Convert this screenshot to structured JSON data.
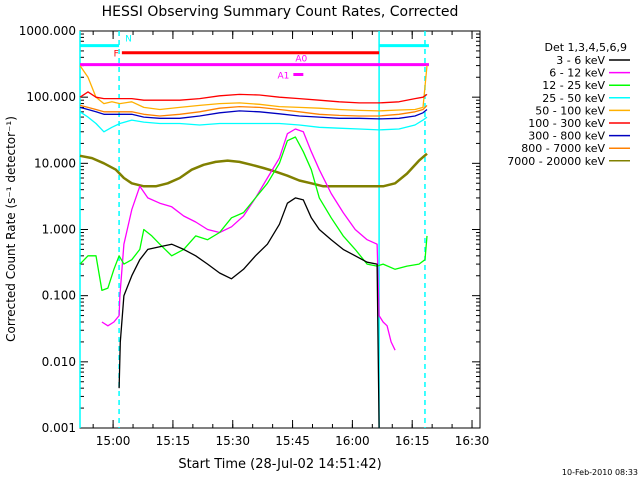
{
  "chart_data": {
    "type": "line",
    "title": "HESSI Observing Summary Count Rates, Corrected",
    "xlabel": "Start Time (28-Jul-02 14:51:42)",
    "ylabel": "Corrected Count Rate (s⁻¹ detector⁻¹)",
    "yscale": "log",
    "ylim": [
      0.001,
      1000
    ],
    "xlim": [
      "14:51:42",
      "16:32:00"
    ],
    "ytick_labels": [
      "1000.000",
      "100.000",
      "10.000",
      "1.000",
      "0.100",
      "0.010",
      "0.001"
    ],
    "ytick_values": [
      1000,
      100,
      10,
      1,
      0.1,
      0.01,
      0.001
    ],
    "xtick_labels": [
      "15:00",
      "15:15",
      "15:30",
      "15:45",
      "16:00",
      "16:15",
      "16:30"
    ],
    "xtick_minutes": [
      8.3,
      23.3,
      38.3,
      53.3,
      68.3,
      83.3,
      98.3
    ],
    "legend_title": "Det 1,3,4,5,6,9",
    "legend_position": "right",
    "series": [
      {
        "name": "3 - 6 keV",
        "color": "#000000",
        "points": [
          [
            9.8,
            0.004
          ],
          [
            10.1,
            0.02
          ],
          [
            11,
            0.1
          ],
          [
            13,
            0.2
          ],
          [
            15,
            0.35
          ],
          [
            17,
            0.5
          ],
          [
            20,
            0.55
          ],
          [
            23,
            0.6
          ],
          [
            26,
            0.5
          ],
          [
            29,
            0.4
          ],
          [
            32,
            0.3
          ],
          [
            35,
            0.22
          ],
          [
            38,
            0.18
          ],
          [
            41,
            0.25
          ],
          [
            44,
            0.4
          ],
          [
            47,
            0.6
          ],
          [
            50,
            1.2
          ],
          [
            52,
            2.5
          ],
          [
            54,
            3.0
          ],
          [
            56,
            2.8
          ],
          [
            58,
            1.5
          ],
          [
            60,
            1.0
          ],
          [
            63,
            0.7
          ],
          [
            66,
            0.5
          ],
          [
            69,
            0.4
          ],
          [
            72,
            0.32
          ],
          [
            74.5,
            0.3
          ],
          [
            75,
            0.001
          ]
        ]
      },
      {
        "name": "6 - 12 keV",
        "color": "#ff00ff",
        "points": [
          [
            5.5,
            0.04
          ],
          [
            7,
            0.035
          ],
          [
            8.5,
            0.04
          ],
          [
            9.8,
            0.05
          ],
          [
            10,
            0.1
          ],
          [
            11,
            0.6
          ],
          [
            13,
            2.0
          ],
          [
            15,
            4.5
          ],
          [
            17,
            3.0
          ],
          [
            20,
            2.5
          ],
          [
            23,
            2.2
          ],
          [
            26,
            1.6
          ],
          [
            29,
            1.3
          ],
          [
            32,
            1.0
          ],
          [
            35,
            0.9
          ],
          [
            38,
            1.1
          ],
          [
            41,
            1.6
          ],
          [
            44,
            3.0
          ],
          [
            47,
            6.0
          ],
          [
            50,
            12
          ],
          [
            52,
            28
          ],
          [
            54,
            33
          ],
          [
            56,
            30
          ],
          [
            58,
            15
          ],
          [
            60,
            8
          ],
          [
            63,
            3.5
          ],
          [
            66,
            1.8
          ],
          [
            69,
            1.0
          ],
          [
            72,
            0.7
          ],
          [
            74.5,
            0.6
          ],
          [
            75,
            0.05
          ],
          [
            76,
            0.04
          ],
          [
            77,
            0.035
          ],
          [
            78,
            0.02
          ],
          [
            79,
            0.015
          ]
        ]
      },
      {
        "name": "12 - 25 keV",
        "color": "#00ff00",
        "points": [
          [
            0,
            0.3
          ],
          [
            2,
            0.4
          ],
          [
            4,
            0.4
          ],
          [
            5.5,
            0.12
          ],
          [
            7,
            0.13
          ],
          [
            8.5,
            0.25
          ],
          [
            9.8,
            0.4
          ],
          [
            11,
            0.3
          ],
          [
            13,
            0.35
          ],
          [
            15,
            0.5
          ],
          [
            16,
            1.0
          ],
          [
            18,
            0.8
          ],
          [
            20,
            0.6
          ],
          [
            23,
            0.4
          ],
          [
            26,
            0.5
          ],
          [
            29,
            0.8
          ],
          [
            32,
            0.7
          ],
          [
            35,
            0.9
          ],
          [
            38,
            1.5
          ],
          [
            41,
            1.8
          ],
          [
            44,
            3.0
          ],
          [
            47,
            5.0
          ],
          [
            50,
            10
          ],
          [
            52,
            22
          ],
          [
            54,
            25
          ],
          [
            56,
            15
          ],
          [
            58,
            8
          ],
          [
            60,
            3
          ],
          [
            63,
            1.5
          ],
          [
            66,
            0.8
          ],
          [
            69,
            0.5
          ],
          [
            72,
            0.3
          ],
          [
            74.5,
            0.28
          ],
          [
            76,
            0.3
          ],
          [
            79,
            0.25
          ],
          [
            82,
            0.28
          ],
          [
            85,
            0.3
          ],
          [
            86.5,
            0.35
          ],
          [
            87,
            0.8
          ]
        ]
      },
      {
        "name": "25 - 50 keV",
        "color": "#00ffff",
        "points": [
          [
            0,
            60
          ],
          [
            2,
            50
          ],
          [
            4,
            40
          ],
          [
            6,
            30
          ],
          [
            8,
            35
          ],
          [
            10,
            40
          ],
          [
            13,
            45
          ],
          [
            16,
            42
          ],
          [
            20,
            40
          ],
          [
            25,
            40
          ],
          [
            30,
            38
          ],
          [
            35,
            40
          ],
          [
            40,
            40
          ],
          [
            45,
            40
          ],
          [
            50,
            40
          ],
          [
            55,
            38
          ],
          [
            60,
            35
          ],
          [
            65,
            34
          ],
          [
            70,
            33
          ],
          [
            75,
            32
          ],
          [
            80,
            33
          ],
          [
            84,
            38
          ],
          [
            86,
            45
          ],
          [
            87,
            50
          ]
        ]
      },
      {
        "name": "50 - 100 keV",
        "color": "#ffb000",
        "points": [
          [
            0,
            300
          ],
          [
            2,
            200
          ],
          [
            4,
            100
          ],
          [
            6,
            80
          ],
          [
            8,
            85
          ],
          [
            10,
            80
          ],
          [
            13,
            85
          ],
          [
            16,
            70
          ],
          [
            20,
            65
          ],
          [
            25,
            70
          ],
          [
            30,
            75
          ],
          [
            35,
            80
          ],
          [
            40,
            82
          ],
          [
            45,
            78
          ],
          [
            50,
            72
          ],
          [
            55,
            70
          ],
          [
            60,
            68
          ],
          [
            65,
            65
          ],
          [
            70,
            63
          ],
          [
            75,
            62
          ],
          [
            80,
            64
          ],
          [
            84,
            65
          ],
          [
            86,
            70
          ],
          [
            87,
            300
          ]
        ]
      },
      {
        "name": "100 - 300 keV",
        "color": "#ff0000",
        "points": [
          [
            0,
            100
          ],
          [
            2,
            120
          ],
          [
            4,
            100
          ],
          [
            6,
            95
          ],
          [
            8,
            95
          ],
          [
            10,
            95
          ],
          [
            13,
            95
          ],
          [
            16,
            90
          ],
          [
            20,
            90
          ],
          [
            25,
            90
          ],
          [
            30,
            95
          ],
          [
            35,
            105
          ],
          [
            40,
            110
          ],
          [
            45,
            108
          ],
          [
            50,
            100
          ],
          [
            55,
            95
          ],
          [
            60,
            90
          ],
          [
            65,
            85
          ],
          [
            70,
            82
          ],
          [
            75,
            82
          ],
          [
            80,
            85
          ],
          [
            84,
            95
          ],
          [
            86,
            100
          ],
          [
            87,
            110
          ]
        ]
      },
      {
        "name": "300 - 800 keV",
        "color": "#0000c0",
        "points": [
          [
            0,
            70
          ],
          [
            2,
            65
          ],
          [
            4,
            60
          ],
          [
            6,
            55
          ],
          [
            8,
            55
          ],
          [
            10,
            55
          ],
          [
            13,
            55
          ],
          [
            16,
            50
          ],
          [
            20,
            48
          ],
          [
            25,
            48
          ],
          [
            30,
            52
          ],
          [
            35,
            58
          ],
          [
            40,
            62
          ],
          [
            45,
            60
          ],
          [
            50,
            56
          ],
          [
            55,
            52
          ],
          [
            60,
            50
          ],
          [
            65,
            48
          ],
          [
            70,
            48
          ],
          [
            75,
            47
          ],
          [
            80,
            48
          ],
          [
            84,
            52
          ],
          [
            86,
            58
          ],
          [
            87,
            65
          ]
        ]
      },
      {
        "name": "800 - 7000 keV",
        "color": "#ff8000",
        "points": [
          [
            0,
            75
          ],
          [
            2,
            70
          ],
          [
            4,
            65
          ],
          [
            6,
            60
          ],
          [
            8,
            60
          ],
          [
            10,
            60
          ],
          [
            13,
            60
          ],
          [
            16,
            55
          ],
          [
            20,
            52
          ],
          [
            25,
            55
          ],
          [
            30,
            60
          ],
          [
            35,
            68
          ],
          [
            40,
            72
          ],
          [
            45,
            70
          ],
          [
            50,
            65
          ],
          [
            55,
            60
          ],
          [
            60,
            55
          ],
          [
            65,
            53
          ],
          [
            70,
            52
          ],
          [
            75,
            52
          ],
          [
            80,
            55
          ],
          [
            84,
            60
          ],
          [
            86,
            65
          ],
          [
            87,
            75
          ]
        ]
      },
      {
        "name": "7000 - 20000 keV",
        "color": "#808000",
        "points": [
          [
            0,
            13
          ],
          [
            3,
            12
          ],
          [
            6,
            10
          ],
          [
            9,
            8
          ],
          [
            11,
            6
          ],
          [
            13,
            5
          ],
          [
            16,
            4.5
          ],
          [
            19,
            4.5
          ],
          [
            22,
            5
          ],
          [
            25,
            6
          ],
          [
            28,
            8
          ],
          [
            31,
            9.5
          ],
          [
            34,
            10.5
          ],
          [
            37,
            11
          ],
          [
            40,
            10.5
          ],
          [
            43,
            9.5
          ],
          [
            46,
            8.5
          ],
          [
            49,
            7.5
          ],
          [
            52,
            6.5
          ],
          [
            55,
            5.5
          ],
          [
            58,
            5
          ],
          [
            61,
            4.5
          ],
          [
            64,
            4.5
          ],
          [
            67,
            4.5
          ],
          [
            70,
            4.5
          ],
          [
            73,
            4.5
          ],
          [
            76,
            4.5
          ],
          [
            79,
            5
          ],
          [
            82,
            7
          ],
          [
            85,
            11
          ],
          [
            87,
            14
          ]
        ]
      }
    ],
    "flag_bars": [
      {
        "label": "N",
        "color": "#00ffff",
        "ranges": [
          [
            0,
            9.8
          ],
          [
            75,
            87.5
          ]
        ],
        "level": 600
      },
      {
        "label": "F",
        "color": "#ff0000",
        "ranges": [
          [
            10.5,
            75
          ]
        ],
        "level": 470
      },
      {
        "label": "A0",
        "color": "#ff00ff",
        "ranges": [
          [
            0,
            87.5
          ]
        ],
        "level": 310
      },
      {
        "label": "A1",
        "color": "#ff00ff",
        "ranges": [
          [
            53.5,
            56
          ]
        ],
        "level": 220
      }
    ],
    "vertical_markers": [
      {
        "minute": 0,
        "color": "#00ffff",
        "style": "solid"
      },
      {
        "minute": 9.8,
        "color": "#00ffff",
        "style": "dashed"
      },
      {
        "minute": 75,
        "color": "#00ffff",
        "style": "solid"
      },
      {
        "minute": 86.5,
        "color": "#00ffff",
        "style": "dashed"
      }
    ]
  },
  "footer_date": "10-Feb-2010 08:33"
}
